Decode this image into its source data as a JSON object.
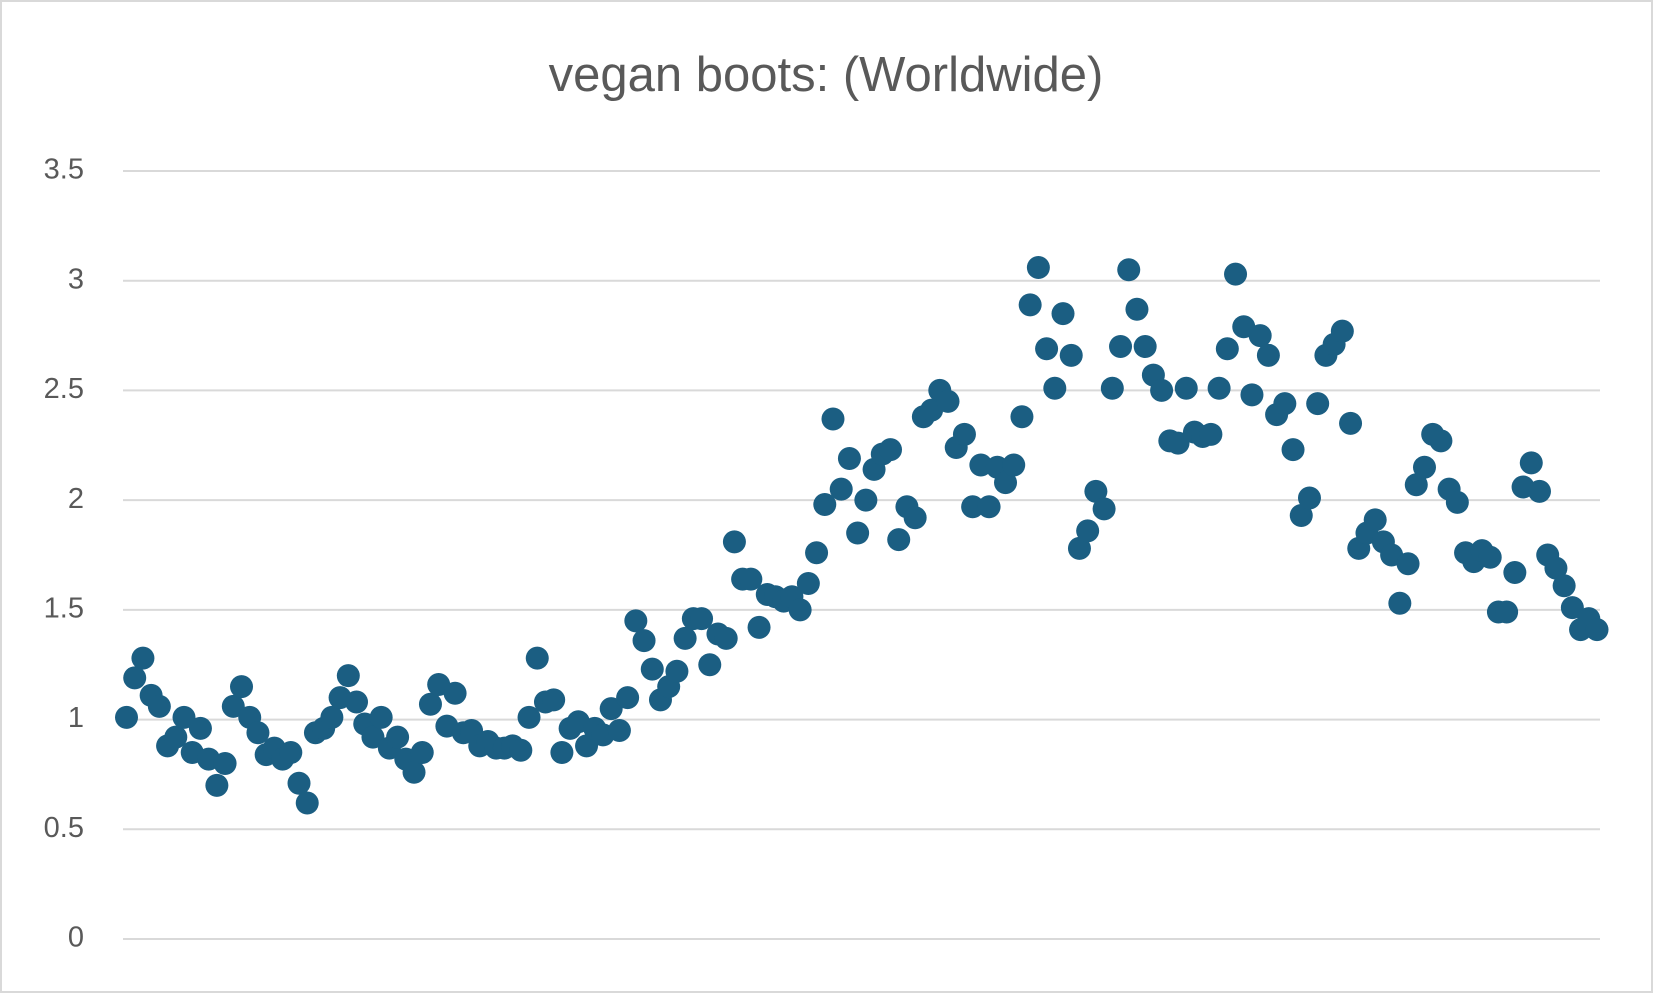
{
  "chart_data": {
    "type": "scatter",
    "title": "vegan boots: (Worldwide)",
    "color": "#1b5e82",
    "grid": true,
    "ylim": [
      0,
      3.5
    ],
    "yticks": [
      0,
      0.5,
      1,
      1.5,
      2,
      2.5,
      3,
      3.5
    ],
    "values": [
      1.01,
      1.19,
      1.28,
      1.11,
      1.06,
      0.88,
      0.92,
      1.01,
      0.85,
      0.96,
      0.82,
      0.7,
      0.8,
      1.06,
      1.15,
      1.01,
      0.94,
      0.84,
      0.87,
      0.82,
      0.85,
      0.71,
      0.62,
      0.94,
      0.96,
      1.01,
      1.1,
      1.2,
      1.08,
      0.98,
      0.92,
      1.01,
      0.87,
      0.92,
      0.82,
      0.76,
      0.85,
      1.07,
      1.16,
      0.97,
      1.12,
      0.94,
      0.95,
      0.88,
      0.9,
      0.87,
      0.87,
      0.88,
      0.86,
      1.01,
      1.28,
      1.08,
      1.09,
      0.85,
      0.96,
      0.99,
      0.88,
      0.96,
      0.93,
      1.05,
      0.95,
      1.1,
      1.45,
      1.36,
      1.23,
      1.09,
      1.15,
      1.22,
      1.37,
      1.46,
      1.46,
      1.25,
      1.39,
      1.37,
      1.81,
      1.64,
      1.64,
      1.42,
      1.57,
      1.56,
      1.54,
      1.56,
      1.5,
      1.62,
      1.76,
      1.98,
      2.37,
      2.05,
      2.19,
      1.85,
      2.0,
      2.14,
      2.21,
      2.23,
      1.82,
      1.97,
      1.92,
      2.38,
      2.41,
      2.5,
      2.45,
      2.24,
      2.3,
      1.97,
      2.16,
      1.97,
      2.15,
      2.08,
      2.16,
      2.38,
      2.89,
      3.06,
      2.69,
      2.51,
      2.85,
      2.66,
      1.78,
      1.86,
      2.04,
      1.96,
      2.51,
      2.7,
      3.05,
      2.87,
      2.7,
      2.57,
      2.5,
      2.27,
      2.26,
      2.51,
      2.31,
      2.29,
      2.3,
      2.51,
      2.69,
      3.03,
      2.79,
      2.48,
      2.75,
      2.66,
      2.39,
      2.44,
      2.23,
      1.93,
      2.01,
      2.44,
      2.66,
      2.71,
      2.77,
      2.35,
      1.78,
      1.85,
      1.91,
      1.81,
      1.75,
      1.53,
      1.71,
      2.07,
      2.15,
      2.3,
      2.27,
      2.05,
      1.99,
      1.76,
      1.72,
      1.77,
      1.74,
      1.49,
      1.49,
      1.67,
      2.06,
      2.17,
      2.04,
      1.75,
      1.69,
      1.61,
      1.51,
      1.41,
      1.46,
      1.41
    ]
  }
}
